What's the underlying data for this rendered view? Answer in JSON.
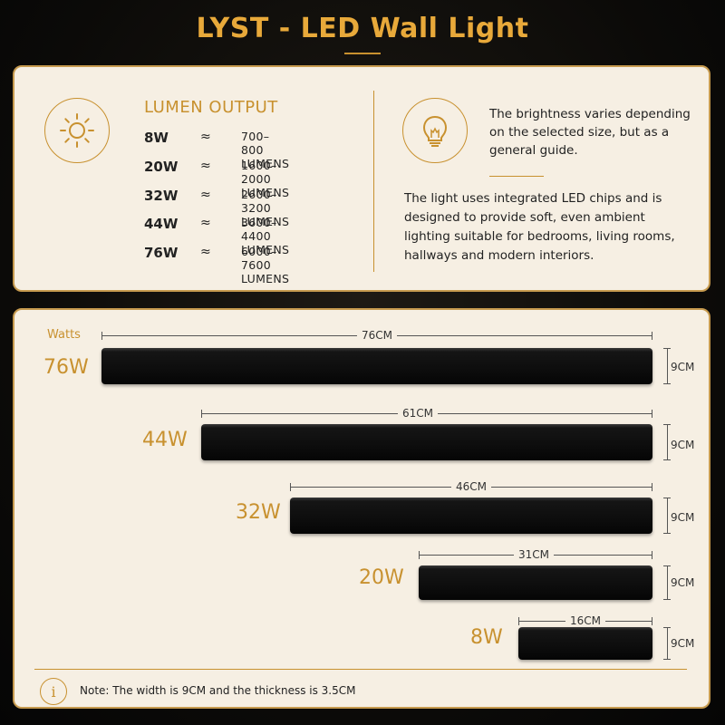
{
  "title": "LYST - LED Wall Light",
  "lumen": {
    "heading": "LUMEN OUTPUT",
    "rows": [
      {
        "watts": "8W",
        "approx": "≈",
        "range": "700–800 LUMENS"
      },
      {
        "watts": "20W",
        "approx": "≈",
        "range": "1600–2000 LUMENS"
      },
      {
        "watts": "32W",
        "approx": "≈",
        "range": "2600–3200 LUMENS"
      },
      {
        "watts": "44W",
        "approx": "≈",
        "range": "3600–4400 LUMENS"
      },
      {
        "watts": "76W",
        "approx": "≈",
        "range": "6000–7600 LUMENS"
      }
    ]
  },
  "info": {
    "brightness_text": "The brightness varies depending on the selected size, but as a general guide.",
    "description": "The light uses integrated LED chips and is designed to provide soft, even ambient lighting suitable for bedrooms, living rooms, hallways and modern interiors."
  },
  "sizes": {
    "watts_label": "Watts",
    "bars": [
      {
        "watts": "76W",
        "length": "76CM",
        "height": "9CM"
      },
      {
        "watts": "44W",
        "length": "61CM",
        "height": "9CM"
      },
      {
        "watts": "32W",
        "length": "46CM",
        "height": "9CM"
      },
      {
        "watts": "20W",
        "length": "31CM",
        "height": "9CM"
      },
      {
        "watts": "8W",
        "length": "16CM",
        "height": "9CM"
      }
    ]
  },
  "note": "Note:  The width is 9CM and the thickness is 3.5CM",
  "colors": {
    "accent": "#c8912f",
    "panel": "#f6efe3",
    "bar": "#0d0d0d"
  }
}
